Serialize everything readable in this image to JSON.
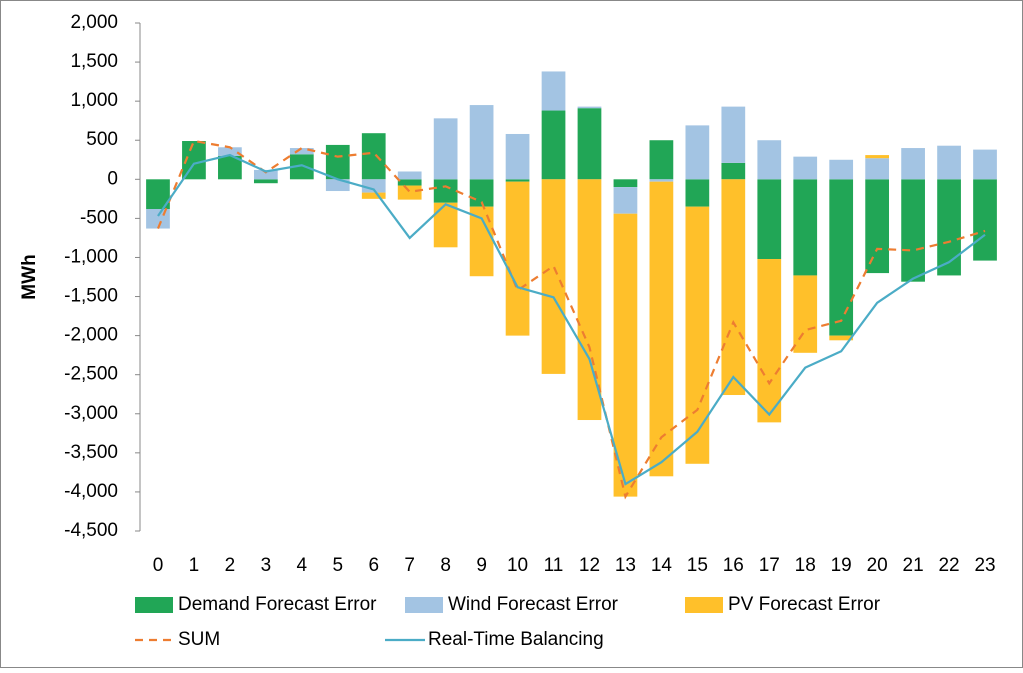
{
  "chart_data": {
    "type": "bar",
    "y_label": "MWh",
    "categories": [
      "0",
      "1",
      "2",
      "3",
      "4",
      "5",
      "6",
      "7",
      "8",
      "9",
      "10",
      "11",
      "12",
      "13",
      "14",
      "15",
      "16",
      "17",
      "18",
      "19",
      "20",
      "21",
      "22",
      "23"
    ],
    "series": [
      {
        "name": "Demand Forecast Error",
        "type": "bar",
        "color": "#21a656",
        "values": [
          -380,
          490,
          300,
          -50,
          320,
          440,
          590,
          -80,
          -300,
          -350,
          -30,
          880,
          910,
          -100,
          500,
          -350,
          210,
          -1020,
          -1230,
          -2000,
          -1200,
          -1310,
          -1230,
          -1040
        ]
      },
      {
        "name": "Wind Forecast Error",
        "type": "bar",
        "color": "#a3c4e3",
        "values": [
          -250,
          0,
          110,
          120,
          80,
          -150,
          -170,
          100,
          780,
          950,
          580,
          500,
          20,
          -340,
          -30,
          690,
          720,
          500,
          290,
          250,
          270,
          400,
          430,
          380
        ]
      },
      {
        "name": "PV Forecast Error",
        "type": "bar",
        "color": "#ffc02a",
        "values": [
          0,
          0,
          0,
          0,
          0,
          0,
          -80,
          -180,
          -570,
          -890,
          -1970,
          -2490,
          -3080,
          -3620,
          -3770,
          -3290,
          -2760,
          -2090,
          -990,
          -60,
          40,
          0,
          0,
          0
        ]
      },
      {
        "name": "SUM",
        "type": "line",
        "dashed": true,
        "color": "#ed7d31",
        "values": [
          -630,
          490,
          410,
          90,
          400,
          290,
          340,
          -160,
          -90,
          -290,
          -1420,
          -1110,
          -2150,
          -4060,
          -3300,
          -2950,
          -1830,
          -2610,
          -1930,
          -1810,
          -890,
          -910,
          -800,
          -660
        ]
      },
      {
        "name": "Real-Time Balancing",
        "type": "line",
        "dashed": false,
        "color": "#4bacc6",
        "values": [
          -470,
          200,
          310,
          100,
          180,
          0,
          -130,
          -750,
          -320,
          -500,
          -1380,
          -1510,
          -2300,
          -3900,
          -3620,
          -3230,
          -2530,
          -3010,
          -2410,
          -2200,
          -1580,
          -1270,
          -1060,
          -710
        ]
      }
    ],
    "ylim": [
      -4500,
      2000
    ],
    "yticks": [
      {
        "value": 2000,
        "label": "2,000"
      },
      {
        "value": 1500,
        "label": "1,500"
      },
      {
        "value": 1000,
        "label": "1,000"
      },
      500,
      0,
      -500,
      {
        "value": -1000,
        "label": "-1,000"
      },
      {
        "value": -1500,
        "label": "-1,500"
      },
      {
        "value": -2000,
        "label": "-2,000"
      },
      {
        "value": -2500,
        "label": "-2,500"
      },
      {
        "value": -3000,
        "label": "-3,000"
      },
      {
        "value": -3500,
        "label": "-3,500"
      },
      {
        "value": -4000,
        "label": "-4,000"
      },
      {
        "value": -4500,
        "label": "-4,500"
      }
    ],
    "legend": "bottom"
  }
}
